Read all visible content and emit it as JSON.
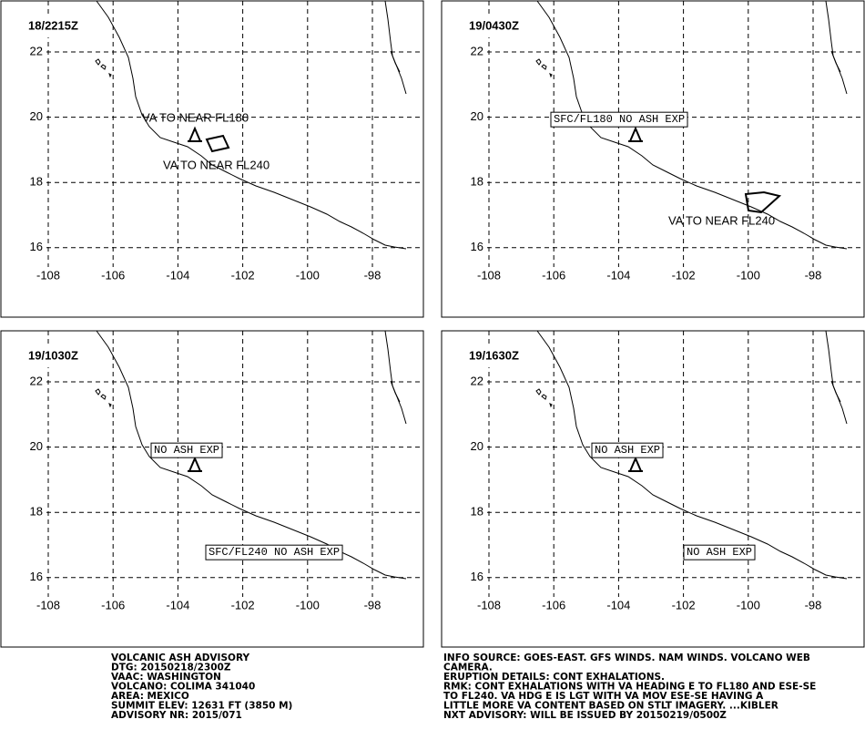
{
  "map": {
    "lon_ticks": [
      -108,
      -106,
      -104,
      -102,
      -100,
      -98
    ],
    "lat_ticks": [
      16,
      18,
      20,
      22
    ],
    "panels": [
      {
        "title": "18/2215Z",
        "annotations": [
          {
            "text": "VA TO NEAR FL180",
            "boxed": false
          },
          {
            "text": "VA TO NEAR FL240",
            "boxed": false
          }
        ]
      },
      {
        "title": "19/0430Z",
        "annotations": [
          {
            "text": "SFC/FL180 NO ASH EXP",
            "boxed": true
          },
          {
            "text": "VA TO NEAR FL240",
            "boxed": false
          }
        ]
      },
      {
        "title": "19/1030Z",
        "annotations": [
          {
            "text": "NO ASH EXP",
            "boxed": true
          },
          {
            "text": "SFC/FL240 NO ASH EXP",
            "boxed": true
          }
        ]
      },
      {
        "title": "19/1630Z",
        "annotations": [
          {
            "text": "NO ASH EXP",
            "boxed": true
          },
          {
            "text": "NO ASH EXP",
            "boxed": true
          }
        ]
      }
    ]
  },
  "advisory": {
    "left": [
      "VOLCANIC ASH ADVISORY",
      "DTG: 20150218/2300Z",
      "VAAC: WASHINGTON",
      "VOLCANO: COLIMA 341040",
      "AREA: MEXICO",
      "SUMMIT ELEV: 12631 FT (3850 M)",
      "ADVISORY NR: 2015/071"
    ],
    "right": [
      "INFO SOURCE: GOES-EAST. GFS WINDS. NAM WINDS. VOLCANO WEB",
      "CAMERA.",
      "ERUPTION DETAILS: CONT EXHALATIONS.",
      "RMK: CONT EXHALATIONS WITH VA HEADING E TO FL180 AND ESE-SE",
      "TO FL240. VA HDG E IS LGT WITH VA MOV ESE-SE HAVING A",
      "LITTLE MORE VA CONTENT BASED ON STLT IMAGERY. ...KIBLER",
      "NXT ADVISORY: WILL BE ISSUED BY 20150219/0500Z"
    ]
  }
}
